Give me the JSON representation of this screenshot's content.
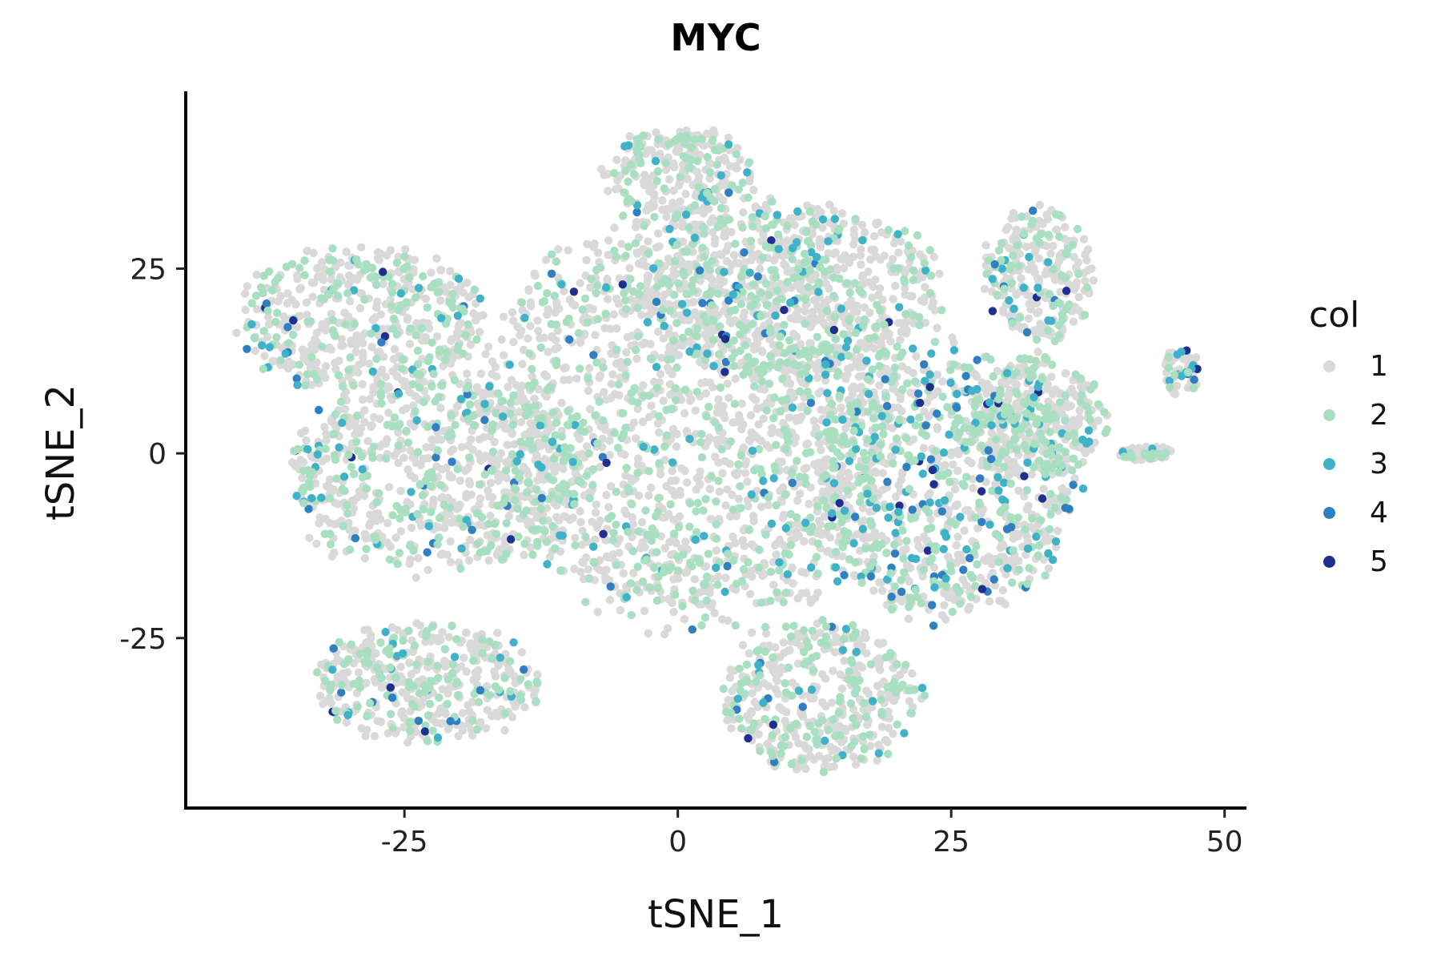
{
  "chart_data": {
    "type": "scatter",
    "title": "MYC",
    "xlabel": "tSNE_1",
    "ylabel": "tSNE_2",
    "xlim": [
      -45,
      52
    ],
    "ylim": [
      -48,
      49
    ],
    "x_ticks": [
      -25,
      0,
      25,
      50
    ],
    "y_ticks": [
      -25,
      0,
      25
    ],
    "grid": false,
    "legend": {
      "title": "col",
      "placement": "right",
      "entries": [
        {
          "label": "1",
          "color": "#d9d9d9"
        },
        {
          "label": "2",
          "color": "#a8dfc1"
        },
        {
          "label": "3",
          "color": "#3fb2c8"
        },
        {
          "label": "4",
          "color": "#2f7fc1"
        },
        {
          "label": "5",
          "color": "#1f2f8f"
        }
      ]
    },
    "regions": [
      {
        "name": "left-upper lobe",
        "cx": -29,
        "cy": 18,
        "rx": 11,
        "ry": 10,
        "weight": 8
      },
      {
        "name": "left-middle lobe",
        "cx": -22,
        "cy": -3,
        "rx": 14,
        "ry": 13,
        "weight": 12
      },
      {
        "name": "lower-left island",
        "cx": -23,
        "cy": -31,
        "rx": 10,
        "ry": 8,
        "weight": 7
      },
      {
        "name": "central body",
        "cx": 2,
        "cy": 5,
        "rx": 19,
        "ry": 28,
        "weight": 28
      },
      {
        "name": "top protrusion",
        "cx": 0,
        "cy": 38,
        "rx": 7,
        "ry": 6,
        "weight": 4
      },
      {
        "name": "upper-center",
        "cx": 10,
        "cy": 22,
        "rx": 14,
        "ry": 12,
        "weight": 10
      },
      {
        "name": "right body",
        "cx": 24,
        "cy": -4,
        "rx": 12,
        "ry": 18,
        "weight": 14
      },
      {
        "name": "lower-right lobe",
        "cx": 13,
        "cy": -33,
        "rx": 9,
        "ry": 10,
        "weight": 7
      },
      {
        "name": "right extension",
        "cx": 33,
        "cy": 5,
        "rx": 6,
        "ry": 8,
        "weight": 5
      },
      {
        "name": "upper-right cluster",
        "cx": 33,
        "cy": 24,
        "rx": 5,
        "ry": 9,
        "weight": 4
      },
      {
        "name": "far-right tail",
        "cx": 43,
        "cy": 0,
        "rx": 2.5,
        "ry": 1,
        "weight": 1
      },
      {
        "name": "far-right island",
        "cx": 46,
        "cy": 11,
        "rx": 1.8,
        "ry": 3,
        "weight": 1
      }
    ],
    "level_mix": {
      "default": [
        0.68,
        0.26,
        0.04,
        0.015,
        0.005
      ],
      "right body": [
        0.58,
        0.26,
        0.09,
        0.05,
        0.02
      ],
      "far-right island": [
        0.55,
        0.2,
        0.12,
        0.08,
        0.05
      ]
    }
  }
}
